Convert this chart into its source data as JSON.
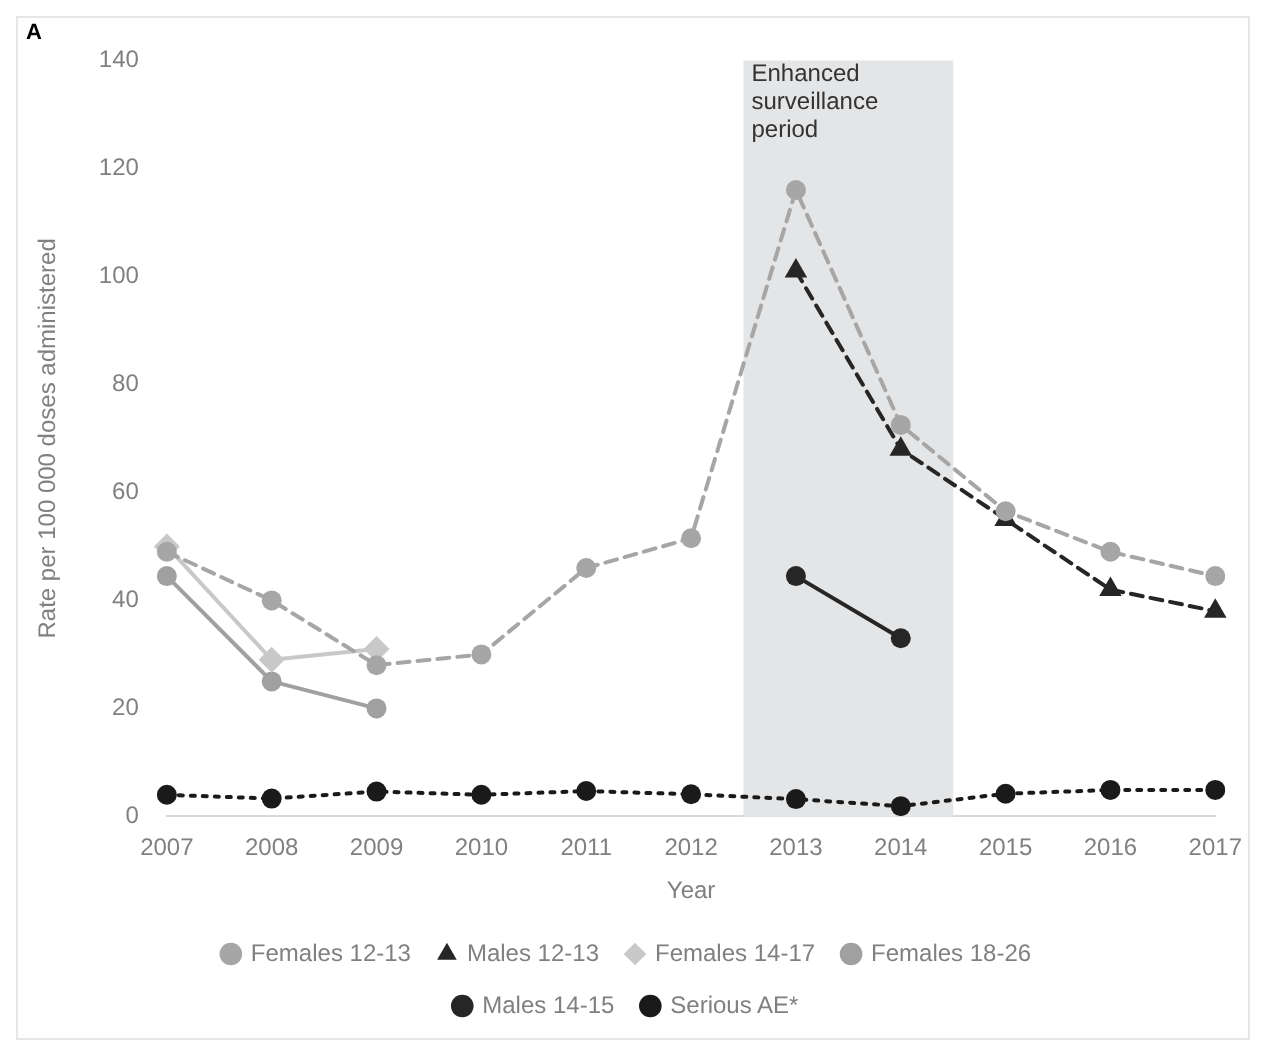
{
  "chart_data": {
    "type": "line",
    "ylabel": "Rate per 100 000 doses administered",
    "xlabel": "Year",
    "annotations": [
      "A"
    ],
    "categories": [
      "2007",
      "2008",
      "2009",
      "2010",
      "2011",
      "2012",
      "2013",
      "2014",
      "2015",
      "2016",
      "2017"
    ],
    "ylim": [
      0,
      140
    ],
    "yticks": [
      0,
      20,
      40,
      60,
      80,
      100,
      120,
      140
    ],
    "grid": false,
    "legend": "bottom",
    "bands": [
      {
        "axis": "x",
        "from": "2013",
        "to": "2014",
        "label": "Enhanced surveillance period",
        "color": "#e4e5e7"
      }
    ],
    "series": [
      {
        "name": "Females 12-13",
        "color": "#a6a6a6",
        "marker": "circle",
        "line_style": "dashed",
        "values": [
          49,
          40,
          28,
          30,
          46,
          51.5,
          116,
          72.5,
          56.5,
          49,
          44.5
        ]
      },
      {
        "name": "Males 12-13",
        "color": "#262626",
        "marker": "triangle",
        "line_style": "dashed",
        "values": [
          null,
          null,
          null,
          null,
          null,
          null,
          101,
          68,
          55,
          42,
          38
        ]
      },
      {
        "name": "Females 14-17",
        "color": "#c8c8c8",
        "marker": "diamond",
        "line_style": "solid",
        "values": [
          50,
          29,
          31,
          null,
          null,
          null,
          null,
          null,
          null,
          null,
          null
        ]
      },
      {
        "name": "Females 18-26",
        "color": "#a0a0a0",
        "marker": "circle",
        "line_style": "solid",
        "values": [
          44.5,
          25,
          20,
          null,
          null,
          null,
          null,
          null,
          null,
          null,
          null
        ]
      },
      {
        "name": "Males 14-15",
        "color": "#262626",
        "marker": "circle",
        "line_style": "solid",
        "values": [
          null,
          null,
          null,
          null,
          null,
          null,
          44.5,
          33,
          null,
          null,
          null
        ]
      },
      {
        "name": "Serious AE*",
        "color": "#1a1a1a",
        "marker": "circle",
        "line_style": "dotted",
        "values": [
          4,
          3.3,
          4.6,
          4,
          4.7,
          4.1,
          3.2,
          1.9,
          4.2,
          4.9,
          4.9
        ]
      }
    ]
  }
}
